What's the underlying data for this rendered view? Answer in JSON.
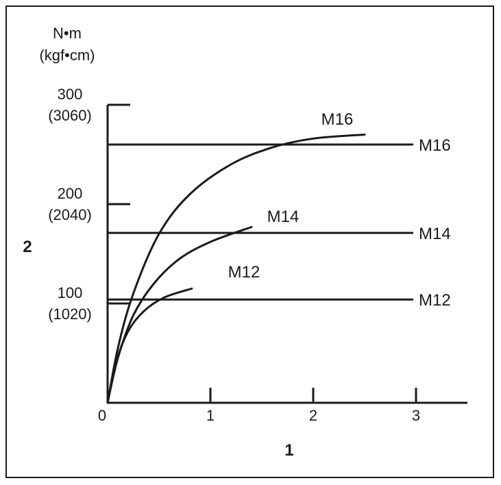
{
  "chart_data": {
    "type": "line",
    "y_unit_label": [
      "N•m",
      "(kgf•cm)"
    ],
    "y_axis_marker": "2",
    "x_axis_marker": "1",
    "xlim": [
      0,
      3.5
    ],
    "ylim": [
      0,
      300
    ],
    "x_ticks": [
      {
        "value": 0,
        "label": "0"
      },
      {
        "value": 1,
        "label": "1"
      },
      {
        "value": 2,
        "label": "2"
      },
      {
        "value": 3,
        "label": "3"
      }
    ],
    "y_ticks": [
      {
        "value": 100,
        "label": "100",
        "sublabel": "(1020)"
      },
      {
        "value": 200,
        "label": "200",
        "sublabel": "(2040)"
      },
      {
        "value": 300,
        "label": "300",
        "sublabel": "(3060)"
      }
    ],
    "curves": [
      {
        "name": "M16",
        "x_max": 2.5,
        "points": [
          [
            0,
            0
          ],
          [
            0.1,
            55
          ],
          [
            0.25,
            110
          ],
          [
            0.5,
            170
          ],
          [
            0.8,
            210
          ],
          [
            1.2,
            240
          ],
          [
            1.6,
            257
          ],
          [
            2.0,
            266
          ],
          [
            2.5,
            270
          ]
        ]
      },
      {
        "name": "M14",
        "x_max": 1.4,
        "points": [
          [
            0,
            0
          ],
          [
            0.1,
            45
          ],
          [
            0.25,
            88
          ],
          [
            0.45,
            120
          ],
          [
            0.7,
            145
          ],
          [
            1.0,
            162
          ],
          [
            1.4,
            177
          ]
        ]
      },
      {
        "name": "M12",
        "x_max": 0.82,
        "points": [
          [
            0,
            0
          ],
          [
            0.08,
            40
          ],
          [
            0.2,
            72
          ],
          [
            0.35,
            92
          ],
          [
            0.55,
            106
          ],
          [
            0.82,
            115
          ]
        ]
      }
    ],
    "limits": [
      {
        "name": "M16",
        "value": 260
      },
      {
        "name": "M14",
        "value": 171
      },
      {
        "name": "M12",
        "value": 104
      }
    ]
  },
  "colors": {
    "line": "#1a1a1a",
    "background": "#ffffff"
  }
}
